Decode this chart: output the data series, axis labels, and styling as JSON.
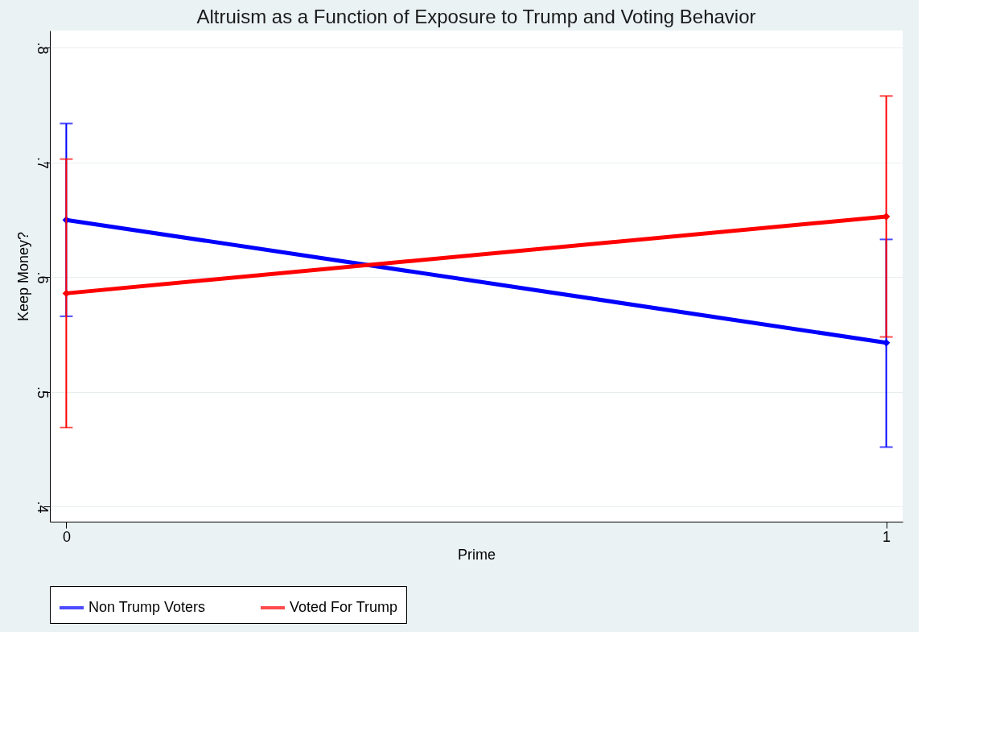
{
  "chart_data": {
    "type": "line",
    "title": "Altruism as a Function of Exposure to Trump and Voting Behavior",
    "xlabel": "Prime",
    "ylabel": "Keep Money?",
    "x": [
      0,
      1
    ],
    "series": [
      {
        "name": "Non Trump Voters",
        "color": "#0000ff",
        "values": [
          0.65,
          0.543
        ],
        "errors": [
          [
            0.566,
            0.734
          ],
          [
            0.452,
            0.633
          ]
        ]
      },
      {
        "name": "Voted For Trump",
        "color": "#ff0000",
        "values": [
          0.586,
          0.653
        ],
        "errors": [
          [
            0.469,
            0.703
          ],
          [
            0.548,
            0.758
          ]
        ]
      }
    ],
    "xlim": [
      -0.02,
      1.02
    ],
    "xticks": [
      0,
      1
    ],
    "ylim": [
      0.387,
      0.815
    ],
    "yticks": [
      {
        "value": 0.4,
        "label": ".4"
      },
      {
        "value": 0.5,
        "label": ".5"
      },
      {
        "value": 0.6,
        "label": ".6"
      },
      {
        "value": 0.7,
        "label": ".7"
      },
      {
        "value": 0.8,
        "label": ".8"
      }
    ],
    "grid": "y",
    "legend": "bottom",
    "marker": "diamond",
    "line_style": "solid"
  }
}
